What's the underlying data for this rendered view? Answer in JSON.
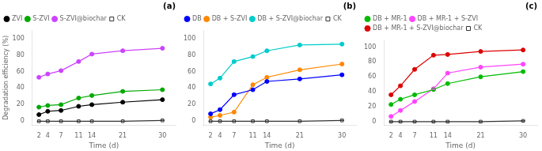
{
  "chart_data": [
    {
      "type": "line",
      "annotations": [
        "(a)"
      ],
      "x": [
        2,
        4,
        7,
        11,
        14,
        21,
        30
      ],
      "xlabel": "Time (d)",
      "ylabel": "Degradation efficiency (%)",
      "xlim": [
        0.5,
        33
      ],
      "ylim": [
        -5,
        110
      ],
      "xticks": [
        2,
        4,
        7,
        11,
        14,
        21,
        30
      ],
      "yticks": [
        0,
        20,
        40,
        60,
        80,
        100
      ],
      "grid": false,
      "legend": "upper left",
      "series": [
        {
          "name": "ZVI",
          "color": "#000000",
          "marker": "circle",
          "values": [
            8,
            12,
            13,
            18,
            20,
            23,
            26
          ],
          "yerr": [
            0.5,
            0.5,
            0.5,
            0.8,
            0.8,
            0.8,
            0.8
          ]
        },
        {
          "name": "S-ZVI",
          "color": "#00aa00",
          "marker": "circle",
          "values": [
            17,
            19,
            20,
            28,
            31,
            36,
            38
          ],
          "yerr": [
            0.8,
            0.5,
            0.5,
            1.0,
            0.8,
            1.0,
            1.0
          ]
        },
        {
          "name": "S-ZVI@biochar",
          "color": "#cc44ff",
          "marker": "circle",
          "values": [
            53,
            57,
            61,
            72,
            81,
            85,
            88
          ],
          "yerr": [
            1.0,
            1.0,
            1.0,
            1.2,
            1.0,
            1.0,
            1.0
          ]
        },
        {
          "name": "CK",
          "color": "#333333",
          "marker": "hollow_square",
          "values": [
            0,
            0,
            0,
            0,
            0,
            0,
            1
          ],
          "yerr": [
            0,
            0,
            0,
            0,
            0,
            0,
            0
          ]
        }
      ]
    },
    {
      "type": "line",
      "annotations": [
        "(b)"
      ],
      "x": [
        2,
        4,
        7,
        11,
        14,
        21,
        30
      ],
      "xlabel": "Time (d)",
      "xlim": [
        0.5,
        33
      ],
      "ylim": [
        -5,
        110
      ],
      "xticks": [
        2,
        4,
        7,
        11,
        14,
        21,
        30
      ],
      "yticks": [
        0,
        20,
        40,
        60,
        80,
        100
      ],
      "grid": false,
      "legend": "upper left",
      "series": [
        {
          "name": "DB",
          "color": "#0000ff",
          "marker": "circle",
          "values": [
            9,
            14,
            32,
            38,
            48,
            51,
            56
          ],
          "yerr": [
            0.8,
            0.8,
            1.0,
            1.0,
            1.0,
            1.0,
            1.2
          ]
        },
        {
          "name": "DB + S-ZVI",
          "color": "#ff8800",
          "marker": "circle",
          "values": [
            5,
            7,
            11,
            44,
            53,
            62,
            69
          ],
          "yerr": [
            0.5,
            0.5,
            0.8,
            1.2,
            1.0,
            1.0,
            1.2
          ]
        },
        {
          "name": "DB + S-ZVI@biochar",
          "color": "#00cccc",
          "marker": "circle",
          "values": [
            45,
            52,
            72,
            78,
            85,
            92,
            93
          ],
          "yerr": [
            1.0,
            1.0,
            1.2,
            1.0,
            1.0,
            1.0,
            1.0
          ]
        },
        {
          "name": "CK",
          "color": "#333333",
          "marker": "hollow_square",
          "values": [
            0,
            0,
            0,
            0,
            0,
            0,
            1
          ],
          "yerr": [
            0,
            0,
            0,
            0,
            0,
            0,
            0
          ]
        }
      ]
    },
    {
      "type": "line",
      "annotations": [
        "(c)"
      ],
      "x": [
        2,
        4,
        7,
        11,
        14,
        21,
        30
      ],
      "xlabel": "Time (d)",
      "xlim": [
        0.5,
        33
      ],
      "ylim": [
        -5,
        110
      ],
      "xticks": [
        2,
        4,
        7,
        11,
        14,
        21,
        30
      ],
      "yticks": [
        0,
        20,
        40,
        60,
        80,
        100
      ],
      "grid": false,
      "legend": "upper left",
      "series": [
        {
          "name": "DB + MR-1",
          "color": "#00bb00",
          "marker": "circle",
          "values": [
            23,
            30,
            36,
            43,
            51,
            60,
            67
          ],
          "yerr": [
            0.8,
            0.8,
            0.8,
            1.0,
            1.0,
            1.0,
            1.0
          ]
        },
        {
          "name": "DB + MR-1 + S-ZVI",
          "color": "#ff44ff",
          "marker": "circle",
          "values": [
            7,
            15,
            27,
            44,
            65,
            73,
            77
          ],
          "yerr": [
            0.5,
            0.8,
            1.0,
            1.2,
            1.2,
            1.0,
            1.0
          ]
        },
        {
          "name": "DB + MR-1 + S-ZVI@biochar",
          "color": "#dd0000",
          "marker": "circle",
          "values": [
            36,
            48,
            70,
            89,
            90,
            94,
            96
          ],
          "yerr": [
            1.0,
            1.0,
            1.2,
            1.0,
            1.0,
            1.0,
            1.0
          ]
        },
        {
          "name": "CK",
          "color": "#333333",
          "marker": "hollow_square",
          "values": [
            0,
            0,
            0,
            0,
            0,
            0,
            1
          ],
          "yerr": [
            0,
            0,
            0,
            0,
            0,
            0,
            0
          ]
        }
      ]
    }
  ]
}
